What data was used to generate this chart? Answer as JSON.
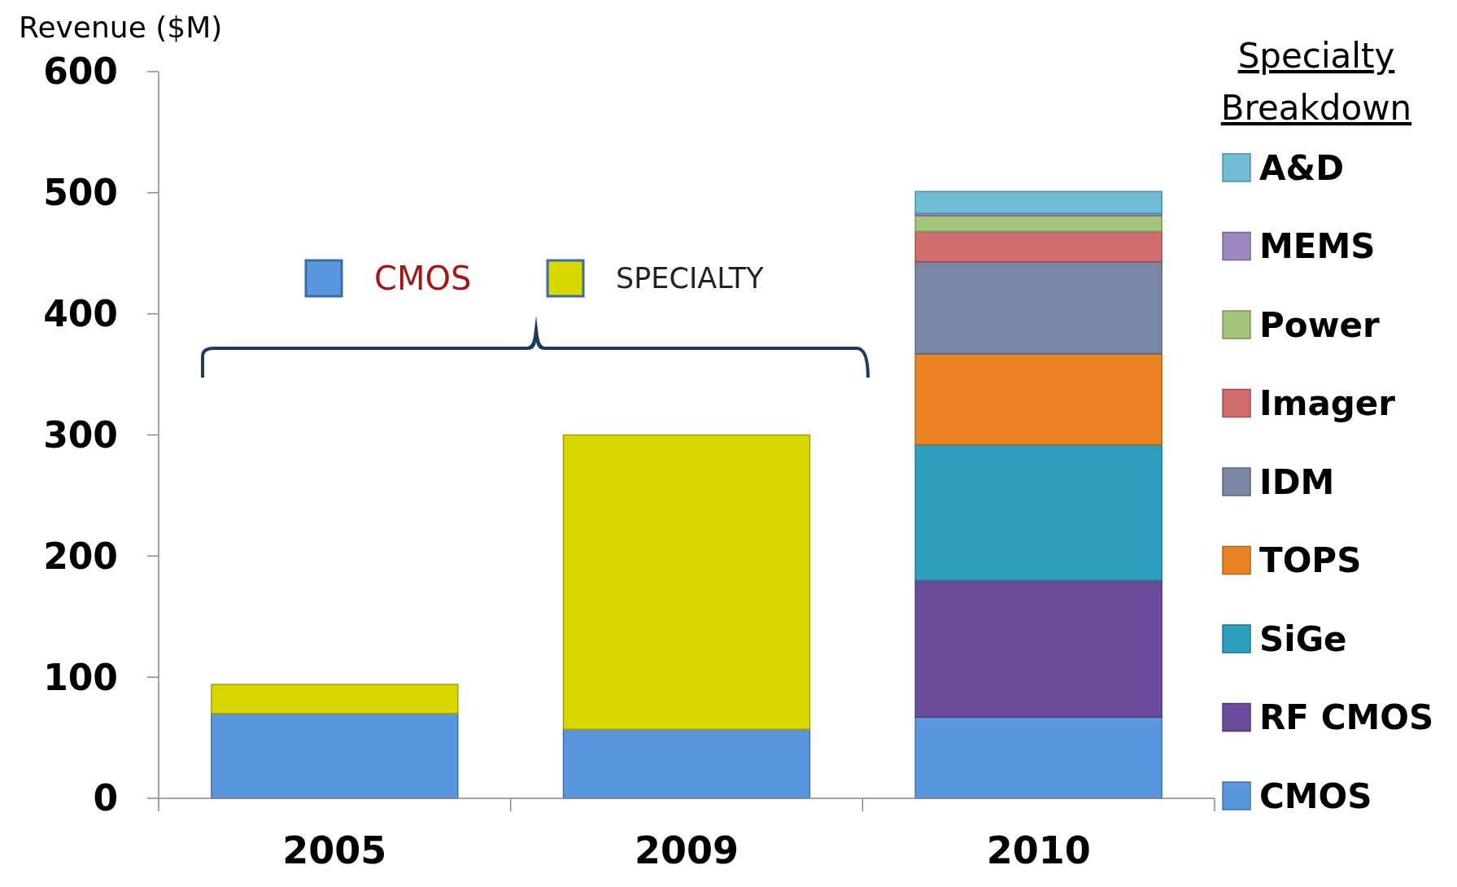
{
  "chart_data": {
    "type": "bar",
    "stacked": true,
    "ylabel": "Revenue ($M)",
    "legend_title": "Specialty Breakdown",
    "legend": "right",
    "categories": [
      "2005",
      "2009",
      "2010"
    ],
    "ylim": [
      0,
      600
    ],
    "yticks": [
      0,
      100,
      200,
      300,
      400,
      500,
      600
    ],
    "grid": false,
    "series": [
      {
        "name": "CMOS",
        "color": "#5b97df",
        "values": [
          70,
          57,
          67
        ]
      },
      {
        "name": "SPECIALTY",
        "color": "#d9d800",
        "values": [
          24,
          243,
          null
        ]
      },
      {
        "name": "RF CMOS",
        "color": "#6a4c9c",
        "values": [
          null,
          null,
          113
        ]
      },
      {
        "name": "SiGe",
        "color": "#2e9fbf",
        "values": [
          null,
          null,
          112
        ]
      },
      {
        "name": "TOPS",
        "color": "#ea8426",
        "values": [
          null,
          null,
          75
        ]
      },
      {
        "name": "IDM",
        "color": "#7a86a3",
        "values": [
          null,
          null,
          76
        ]
      },
      {
        "name": "Imager",
        "color": "#d06d6d",
        "values": [
          null,
          null,
          25
        ]
      },
      {
        "name": "Power",
        "color": "#a3c47a",
        "values": [
          null,
          null,
          13
        ]
      },
      {
        "name": "MEMS",
        "color": "#9b88c0",
        "values": [
          null,
          null,
          2
        ]
      },
      {
        "name": "A&D",
        "color": "#6fbcd6",
        "values": [
          null,
          null,
          18
        ]
      }
    ]
  }
}
